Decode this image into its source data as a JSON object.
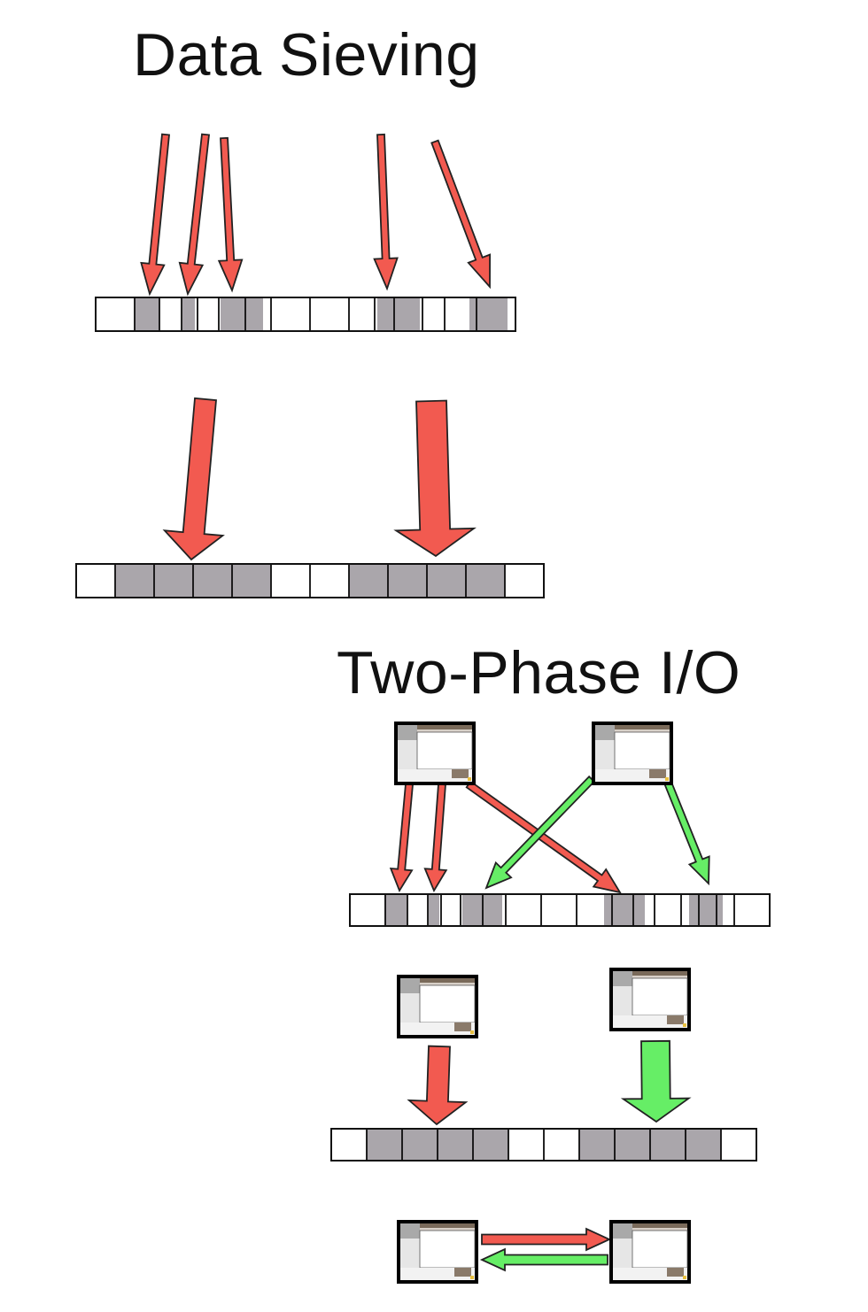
{
  "titles": {
    "data_sieving": "Data Sieving",
    "two_phase": "Two-Phase I/O"
  },
  "colors": {
    "block_filled": "#aaa6ab",
    "block_empty": "#ffffff",
    "block_border": "#111111",
    "arrow_red": "#f25a50",
    "arrow_green": "#66ee66",
    "arrow_outline": "#222222",
    "process_frame": "#000000"
  },
  "icons": {
    "process": "computer-window-icon"
  }
}
